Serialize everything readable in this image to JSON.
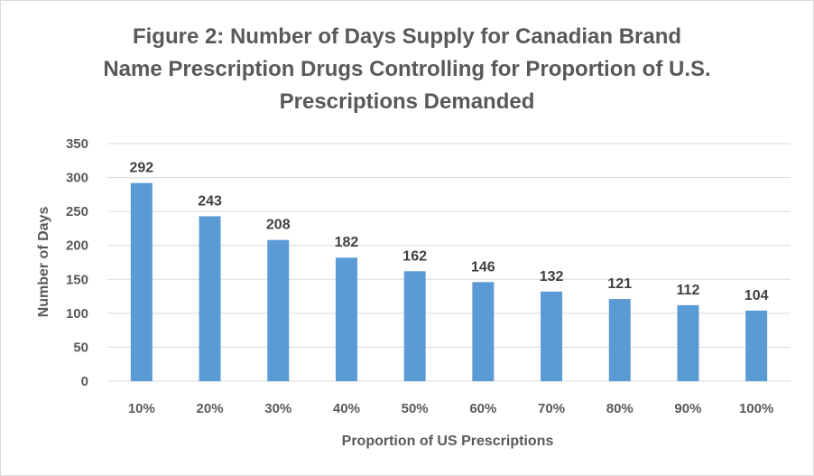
{
  "chart_data": {
    "type": "bar",
    "title_lines": [
      "Figure 2: Number of Days Supply for Canadian Brand",
      "Name Prescription Drugs Controlling for Proportion of U.S.",
      "Prescriptions Demanded"
    ],
    "xlabel": "Proportion of US Prescriptions",
    "ylabel": "Number of Days",
    "categories": [
      "10%",
      "20%",
      "30%",
      "40%",
      "50%",
      "60%",
      "70%",
      "80%",
      "90%",
      "100%"
    ],
    "values": [
      292,
      243,
      208,
      182,
      162,
      146,
      132,
      121,
      112,
      104
    ],
    "ylim": [
      0,
      350
    ],
    "yticks": [
      0,
      50,
      100,
      150,
      200,
      250,
      300,
      350
    ],
    "grid": true,
    "legend": "none",
    "colors": {
      "bar": "#5b9bd5",
      "grid": "#d9d9d9"
    }
  }
}
